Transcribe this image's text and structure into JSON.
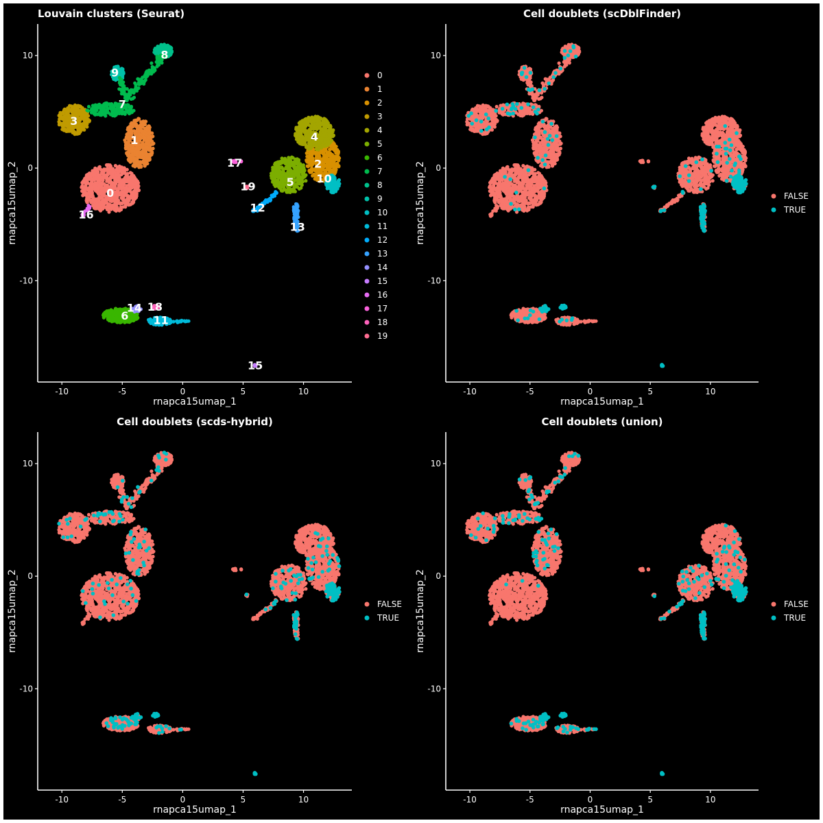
{
  "colors": {
    "background": "#000000",
    "axis": "#ffffff",
    "FALSE": "#f8766d",
    "TRUE": "#00bfc4",
    "clusters": [
      "#f8766d",
      "#ea8331",
      "#d89000",
      "#c09b00",
      "#a3a500",
      "#7cae00",
      "#39b600",
      "#00bb4e",
      "#00c08b",
      "#00c1aa",
      "#00bfc4",
      "#00bbda",
      "#00acfc",
      "#35a2ff",
      "#9590ff",
      "#c77cff",
      "#e76bf3",
      "#fa62db",
      "#ff62bc",
      "#ff6c91"
    ]
  },
  "chart_data": [
    {
      "type": "scatter",
      "title": "Louvain clusters (Seurat)",
      "xlabel": "rnapca15umap_1",
      "ylabel": "rnapca15umap_2",
      "xlim": [
        -12,
        14
      ],
      "ylim": [
        -19,
        12.8
      ],
      "xticks": [
        -10,
        -5,
        0,
        5,
        10
      ],
      "yticks": [
        -10,
        0,
        10
      ],
      "legend": {
        "placement": "right",
        "entries": [
          "0",
          "1",
          "2",
          "3",
          "4",
          "5",
          "6",
          "7",
          "8",
          "9",
          "10",
          "11",
          "12",
          "13",
          "14",
          "15",
          "16",
          "17",
          "18",
          "19"
        ]
      },
      "cluster_labels": [
        {
          "label": "0",
          "x": -6,
          "y": -2.2
        },
        {
          "label": "1",
          "x": -4,
          "y": 2.5
        },
        {
          "label": "2",
          "x": 11.2,
          "y": 0.4
        },
        {
          "label": "3",
          "x": -9,
          "y": 4.2
        },
        {
          "label": "4",
          "x": 10.9,
          "y": 2.8
        },
        {
          "label": "5",
          "x": 8.9,
          "y": -1.2
        },
        {
          "label": "6",
          "x": -4.8,
          "y": -13.1
        },
        {
          "label": "7",
          "x": -5,
          "y": 5.7
        },
        {
          "label": "8",
          "x": -1.5,
          "y": 10.1
        },
        {
          "label": "9",
          "x": -5.6,
          "y": 8.5
        },
        {
          "label": "10",
          "x": 11.7,
          "y": -0.9
        },
        {
          "label": "11",
          "x": -1.8,
          "y": -13.5
        },
        {
          "label": "12",
          "x": 6.2,
          "y": -3.5
        },
        {
          "label": "13",
          "x": 9.5,
          "y": -5.2
        },
        {
          "label": "14",
          "x": -4,
          "y": -12.4
        },
        {
          "label": "15",
          "x": 6,
          "y": -17.5
        },
        {
          "label": "16",
          "x": -8,
          "y": -4.1
        },
        {
          "label": "17",
          "x": 4.3,
          "y": 0.5
        },
        {
          "label": "18",
          "x": -2.3,
          "y": -12.3
        },
        {
          "label": "19",
          "x": 5.4,
          "y": -1.6
        }
      ]
    },
    {
      "type": "scatter",
      "title": "Cell doublets (scDblFinder)",
      "xlabel": "rnapca15umap_1",
      "ylabel": "rnapca15umap_2",
      "xlim": [
        -12,
        14
      ],
      "ylim": [
        -19,
        12.8
      ],
      "xticks": [
        -10,
        -5,
        0,
        5,
        10
      ],
      "yticks": [
        -10,
        0,
        10
      ],
      "legend": {
        "placement": "right",
        "entries": [
          "FALSE",
          "TRUE"
        ]
      }
    },
    {
      "type": "scatter",
      "title": "Cell doublets (scds-hybrid)",
      "xlabel": "rnapca15umap_1",
      "ylabel": "rnapca15umap_2",
      "xlim": [
        -12,
        14
      ],
      "ylim": [
        -19,
        12.8
      ],
      "xticks": [
        -10,
        -5,
        0,
        5,
        10
      ],
      "yticks": [
        -10,
        0,
        10
      ],
      "legend": {
        "placement": "right",
        "entries": [
          "FALSE",
          "TRUE"
        ]
      }
    },
    {
      "type": "scatter",
      "title": "Cell doublets (union)",
      "xlabel": "rnapca15umap_1",
      "ylabel": "rnapca15umap_2",
      "xlim": [
        -12,
        14
      ],
      "ylim": [
        -19,
        12.8
      ],
      "xticks": [
        -10,
        -5,
        0,
        5,
        10
      ],
      "yticks": [
        -10,
        0,
        10
      ],
      "legend": {
        "placement": "right",
        "entries": [
          "FALSE",
          "TRUE"
        ]
      }
    }
  ]
}
